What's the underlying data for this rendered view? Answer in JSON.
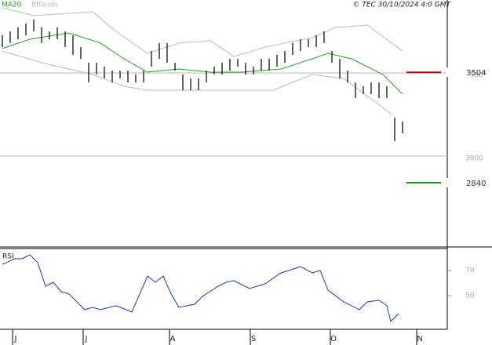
{
  "chart_data": [
    {
      "type": "ohlc",
      "legend": [
        {
          "name": "MA20",
          "color": "#2a9d2a"
        },
        {
          "name": "BBands",
          "color": "#bbbbbb"
        }
      ],
      "source": "© TEC 30/10/2024 4:0 GMT",
      "x": [
        0,
        2,
        4,
        6,
        8,
        10,
        12,
        14,
        16,
        18,
        20,
        22,
        24,
        26,
        28,
        30,
        32,
        34,
        36,
        38,
        40,
        42,
        44,
        46,
        48,
        50,
        52,
        54,
        56,
        58,
        60,
        62,
        64,
        66,
        68,
        70,
        72,
        74,
        76,
        78,
        80,
        82,
        84,
        86,
        88,
        90,
        92,
        94,
        96,
        98,
        100,
        102
      ],
      "high": [
        3727,
        3750,
        3774,
        3797,
        3821,
        3774,
        3750,
        3774,
        3750,
        3727,
        3656,
        3562,
        3562,
        3538,
        3514,
        3514,
        3514,
        3491,
        3514,
        3632,
        3680,
        3680,
        3562,
        3491,
        3467,
        3467,
        3514,
        3538,
        3562,
        3585,
        3585,
        3562,
        3538,
        3585,
        3585,
        3609,
        3632,
        3680,
        3703,
        3703,
        3727,
        3750,
        3632,
        3585,
        3514,
        3443,
        3420,
        3443,
        3443,
        3420,
        3231,
        3208
      ],
      "low": [
        3656,
        3680,
        3703,
        3727,
        3750,
        3680,
        3703,
        3703,
        3656,
        3609,
        3585,
        3443,
        3491,
        3467,
        3443,
        3467,
        3443,
        3443,
        3443,
        3538,
        3585,
        3562,
        3514,
        3396,
        3396,
        3396,
        3443,
        3491,
        3491,
        3514,
        3538,
        3491,
        3491,
        3514,
        3514,
        3538,
        3562,
        3609,
        3632,
        3656,
        3656,
        3680,
        3562,
        3467,
        3443,
        3349,
        3373,
        3373,
        3349,
        3349,
        3090,
        3137
      ],
      "color": "#111111",
      "lines": [
        {
          "name": "MA20",
          "color": "#2a9d2a",
          "x": [
            0,
            7,
            17,
            25,
            31,
            37,
            45,
            53,
            61,
            71,
            79,
            83,
            89,
            97,
            102
          ],
          "values": [
            3647,
            3703,
            3741,
            3680,
            3585,
            3505,
            3524,
            3505,
            3505,
            3524,
            3585,
            3618,
            3585,
            3491,
            3373
          ]
        },
        {
          "name": "BBands",
          "color": "#bbbbbb",
          "x": [
            0,
            8,
            23,
            29,
            37,
            45,
            53,
            59,
            67,
            79,
            85,
            93,
            102
          ],
          "values": [
            3892,
            3845,
            3868,
            3750,
            3618,
            3680,
            3694,
            3599,
            3656,
            3713,
            3774,
            3788,
            3632
          ]
        },
        {
          "name": "BBands",
          "color": "#bbbbbb",
          "x": [
            0,
            10,
            23,
            31,
            37,
            47,
            59,
            69,
            79,
            87,
            95,
            99
          ],
          "values": [
            3632,
            3562,
            3491,
            3420,
            3396,
            3396,
            3396,
            3396,
            3491,
            3467,
            3326,
            3255
          ]
        }
      ],
      "levels": [
        {
          "value": 3504,
          "color": "#cc0000"
        },
        {
          "value": 2840,
          "color": "#119911"
        }
      ],
      "xlim": [
        -0.6,
        113.4
      ],
      "ylim": [
        2453,
        3939
      ],
      "yticks": [
        3000,
        3500
      ],
      "grid": true
    },
    {
      "type": "line",
      "title": "RSI",
      "color": "#2233bb",
      "x": [
        0,
        1,
        3,
        5,
        7,
        9,
        11,
        13,
        15,
        17,
        19,
        21,
        23,
        25,
        29,
        33,
        37,
        39,
        41,
        43,
        45,
        49,
        51,
        55,
        57,
        59,
        63,
        67,
        71,
        73,
        76,
        79,
        81,
        83,
        87,
        91,
        93,
        96,
        98,
        99,
        101
      ],
      "values": [
        75,
        76.3,
        79.4,
        79.4,
        82.5,
        76.3,
        57.5,
        60.6,
        53.1,
        51.3,
        45,
        38.8,
        40.6,
        38.8,
        41.9,
        36.9,
        65.6,
        60.6,
        65.6,
        51.3,
        40.6,
        43.1,
        49.4,
        57.5,
        60.6,
        61.9,
        55.6,
        59.4,
        68.1,
        70,
        73.1,
        68.1,
        70,
        54.4,
        45,
        38.8,
        45,
        46.3,
        41.9,
        29.4,
        35.6
      ],
      "xlim": [
        -0.6,
        113.4
      ],
      "ylim": [
        23.1,
        87.5
      ],
      "yticks": [
        50,
        70
      ],
      "xticks": [
        {
          "value": 3.4,
          "label": "J"
        },
        {
          "value": 21.4,
          "label": "J"
        },
        {
          "value": 43.4,
          "label": "A"
        },
        {
          "value": 64,
          "label": "S"
        },
        {
          "value": 84.4,
          "label": "O"
        },
        {
          "value": 106.4,
          "label": "N"
        }
      ]
    }
  ]
}
